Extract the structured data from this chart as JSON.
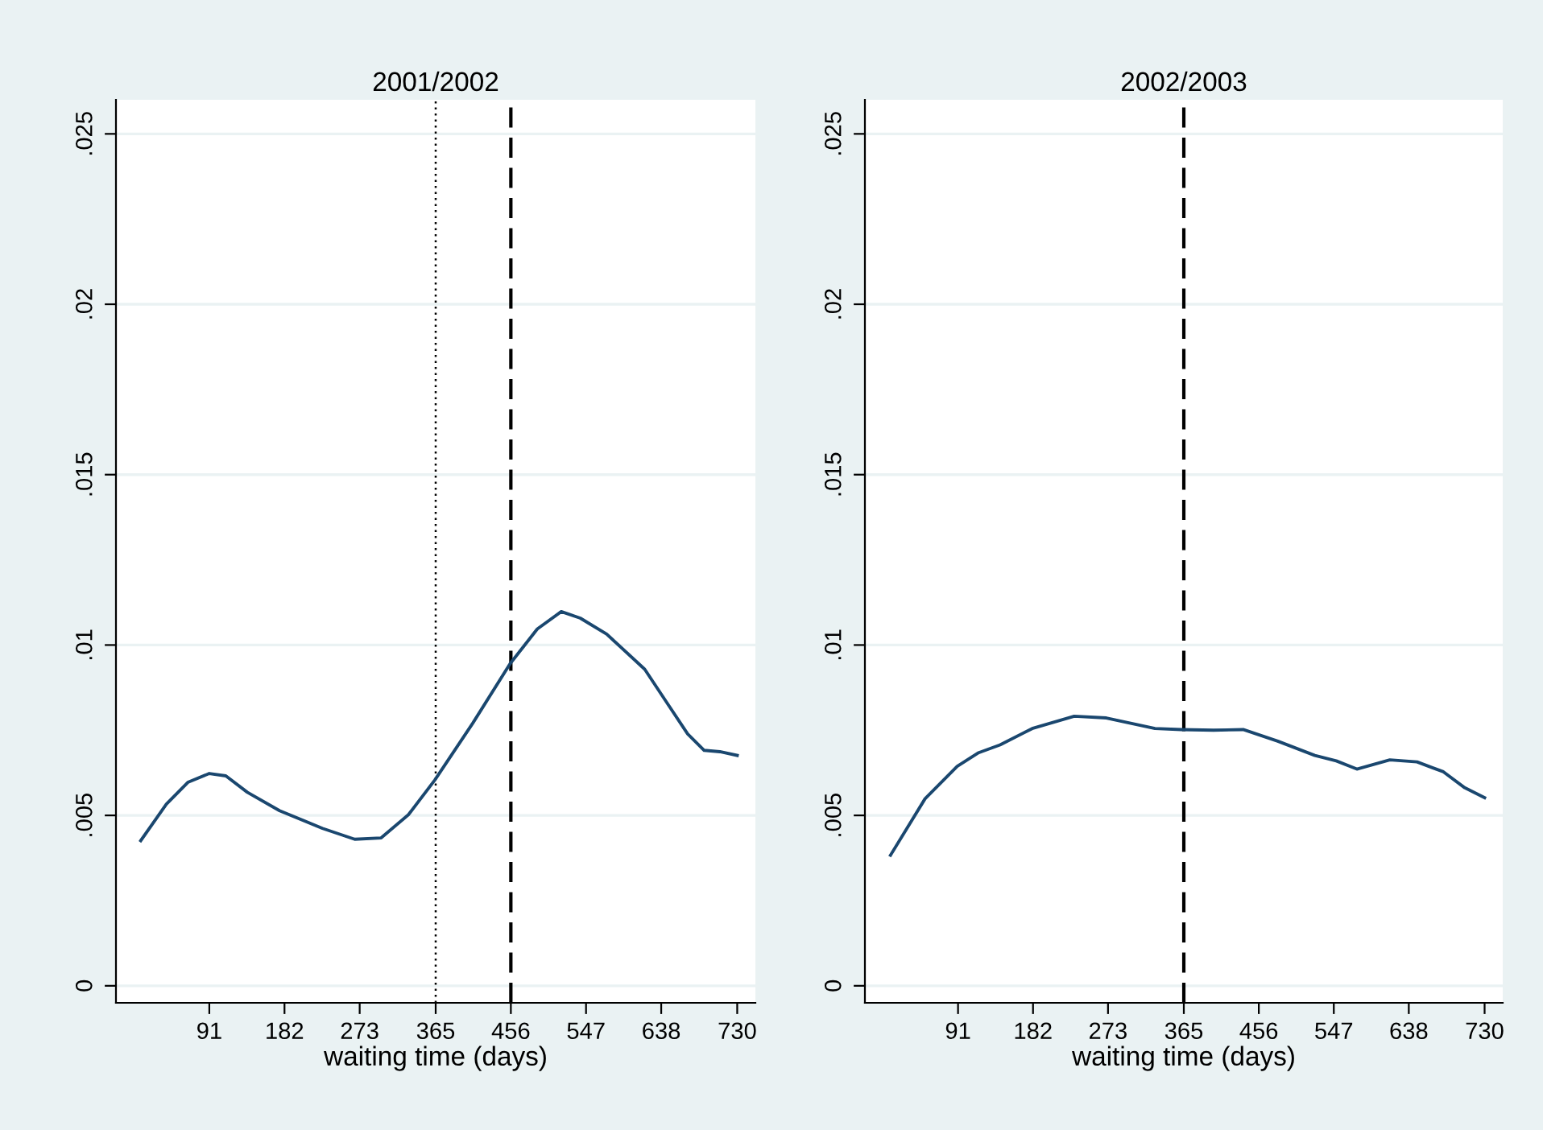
{
  "chart_data": [
    {
      "type": "line",
      "title": "2001/2002",
      "xlabel": "waiting time (days)",
      "x": [
        8,
        39,
        65,
        91,
        111,
        137,
        176,
        228,
        267,
        299,
        332,
        364,
        410,
        455,
        488,
        517,
        540,
        572,
        618,
        644,
        670,
        690,
        709,
        730
      ],
      "series": [
        {
          "color": "#1a476f",
          "values": [
            0.00426,
            0.00533,
            0.00597,
            0.00623,
            0.00616,
            0.00568,
            0.00514,
            0.00462,
            0.0043,
            0.00434,
            0.00502,
            0.00604,
            0.00771,
            0.00945,
            0.01047,
            0.01098,
            0.01079,
            0.01032,
            0.00929,
            0.00834,
            0.00739,
            0.00691,
            0.00687,
            0.00676
          ]
        }
      ],
      "xlim": [
        -22,
        752
      ],
      "xticks": [
        91,
        182,
        273,
        365,
        456,
        547,
        638,
        730
      ],
      "ylim": [
        -0.0005,
        0.026
      ],
      "yticks": [
        {
          "value": 0,
          "label": "0"
        },
        {
          "value": 0.005,
          "label": ".005"
        },
        {
          "value": 0.01,
          "label": ".01"
        },
        {
          "value": 0.015,
          "label": ".015"
        },
        {
          "value": 0.02,
          "label": ".02"
        },
        {
          "value": 0.025,
          "label": ".025"
        }
      ],
      "grid": "y",
      "ref_lines": [
        {
          "axis": "x",
          "value": 365,
          "color": "#000000",
          "line_style": "dotted"
        },
        {
          "axis": "x",
          "value": 456,
          "color": "#000000",
          "line_style": "dashed"
        }
      ]
    },
    {
      "type": "line",
      "title": "2002/2003",
      "xlabel": "waiting time (days)",
      "x": [
        9,
        51,
        90,
        116,
        142,
        181,
        232,
        271,
        330,
        362,
        401,
        437,
        479,
        524,
        550,
        575,
        615,
        648,
        680,
        706,
        730
      ],
      "series": [
        {
          "color": "#1a476f",
          "values": [
            0.00383,
            0.00549,
            0.00644,
            0.00684,
            0.00707,
            0.00755,
            0.00791,
            0.00786,
            0.00755,
            0.00752,
            0.0075,
            0.00752,
            0.00718,
            0.00676,
            0.0066,
            0.00636,
            0.00663,
            0.00657,
            0.00628,
            0.00581,
            0.00552
          ]
        }
      ],
      "xlim": [
        -22,
        752
      ],
      "xticks": [
        91,
        182,
        273,
        365,
        456,
        547,
        638,
        730
      ],
      "ylim": [
        -0.0005,
        0.026
      ],
      "yticks": [
        {
          "value": 0,
          "label": "0"
        },
        {
          "value": 0.005,
          "label": ".005"
        },
        {
          "value": 0.01,
          "label": ".01"
        },
        {
          "value": 0.015,
          "label": ".015"
        },
        {
          "value": 0.02,
          "label": ".02"
        },
        {
          "value": 0.025,
          "label": ".025"
        }
      ],
      "grid": "y",
      "ref_lines": [
        {
          "axis": "x",
          "value": 365,
          "color": "#000000",
          "line_style": "dashed"
        }
      ]
    }
  ]
}
